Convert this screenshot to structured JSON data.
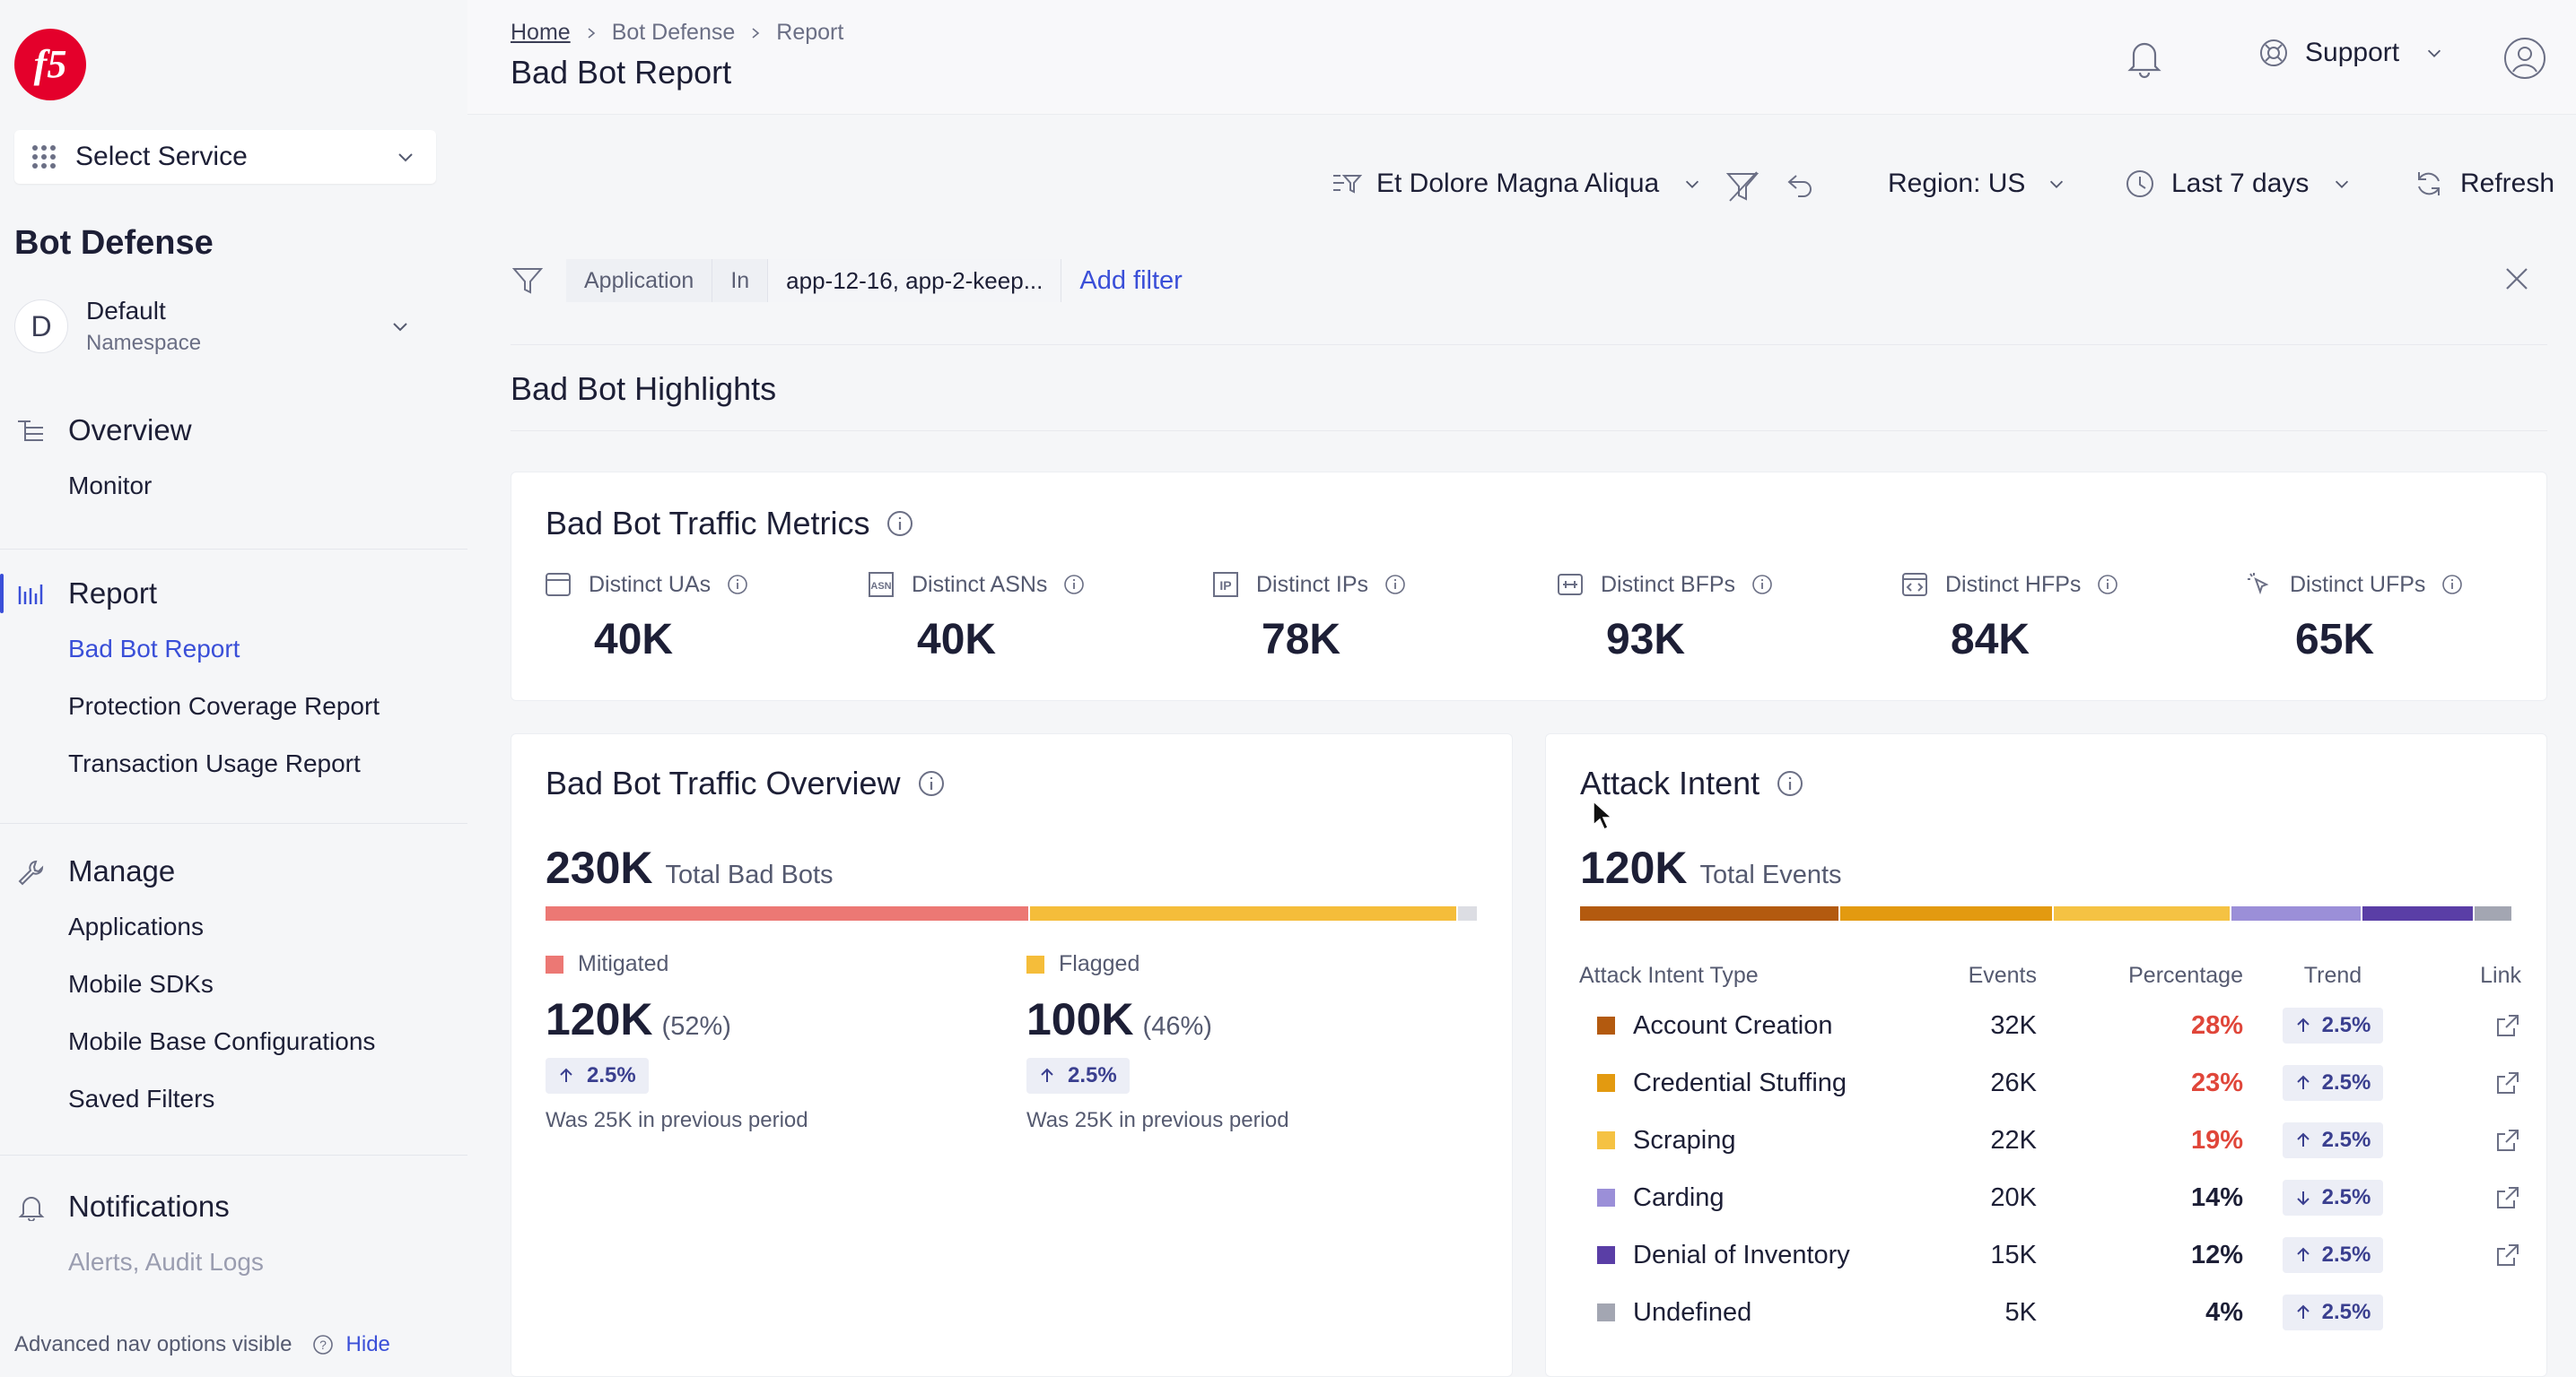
{
  "brand": {
    "logo_text": "f5",
    "accent": "#3a4fd8",
    "logo_color": "#e4002b"
  },
  "sidebar": {
    "select_service": "Select Service",
    "section_title": "Bot Defense",
    "namespace": {
      "avatar": "D",
      "name": "Default",
      "subtitle": "Namespace"
    },
    "groups": [
      {
        "label": "Overview",
        "icon": "overview-icon",
        "items": [
          "Monitor"
        ]
      },
      {
        "label": "Report",
        "icon": "report-icon",
        "items": [
          "Bad Bot Report",
          "Protection Coverage Report",
          "Transaction Usage Report"
        ]
      },
      {
        "label": "Manage",
        "icon": "wrench-icon",
        "items": [
          "Applications",
          "Mobile SDKs",
          "Mobile Base Configurations",
          "Saved Filters"
        ]
      },
      {
        "label": "Notifications",
        "icon": "bell-icon",
        "items": [
          "Alerts, Audit Logs"
        ]
      }
    ],
    "advanced_nav": {
      "text": "Advanced nav options visible",
      "hide": "Hide"
    }
  },
  "header": {
    "breadcrumb": [
      "Home",
      "Bot Defense",
      "Report"
    ],
    "title": "Bad Bot Report",
    "support": "Support"
  },
  "toolbar": {
    "app_selector": "Et Dolore Magna Aliqua",
    "region": "Region: US",
    "time_range": "Last 7 days",
    "refresh": "Refresh"
  },
  "filter": {
    "field": "Application",
    "operator": "In",
    "value": "app-12-16, app-2-keep...",
    "add": "Add filter"
  },
  "highlights_title": "Bad Bot Highlights",
  "metrics_card": {
    "title": "Bad Bot Traffic Metrics",
    "metrics": [
      {
        "label": "Distinct UAs",
        "value": "40K",
        "icon": "browser-window-icon"
      },
      {
        "label": "Distinct ASNs",
        "value": "40K",
        "icon": "asn-icon"
      },
      {
        "label": "Distinct IPs",
        "value": "78K",
        "icon": "ip-icon"
      },
      {
        "label": "Distinct BFPs",
        "value": "93K",
        "icon": "fingerprint-card-icon"
      },
      {
        "label": "Distinct HFPs",
        "value": "84K",
        "icon": "code-window-icon"
      },
      {
        "label": "Distinct UFPs",
        "value": "65K",
        "icon": "pointer-click-icon"
      }
    ]
  },
  "overview_card": {
    "title": "Bad Bot Traffic Overview",
    "total": "230K",
    "total_caption": "Total Bad Bots",
    "bar_segments": [
      {
        "name": "Mitigated",
        "fraction": 0.52,
        "color": "#ec7874"
      },
      {
        "name": "Flagged",
        "fraction": 0.46,
        "color": "#f5bd3a"
      },
      {
        "name": "Other",
        "fraction": 0.02,
        "color": "#dcdde3"
      }
    ],
    "legend": [
      {
        "label": "Mitigated",
        "value": "120K",
        "pct": "(52%)",
        "trend": "2.5%",
        "was": "Was 25K in previous period",
        "color": "#ec7874"
      },
      {
        "label": "Flagged",
        "value": "100K",
        "pct": "(46%)",
        "trend": "2.5%",
        "was": "Was 25K in previous period",
        "color": "#f5bd3a"
      }
    ]
  },
  "attack_card": {
    "title": "Attack Intent",
    "total": "120K",
    "total_caption": "Total Events",
    "columns": [
      "Attack Intent Type",
      "Events",
      "Percentage",
      "Trend",
      "Link"
    ],
    "rows": [
      {
        "type": "Account Creation",
        "events": "32K",
        "pct": "28%",
        "trend": "2.5%",
        "dir": "up",
        "color": "#b35a0f",
        "pct_color": "#e0463a",
        "link": true,
        "fraction": 0.28
      },
      {
        "type": "Credential Stuffing",
        "events": "26K",
        "pct": "23%",
        "trend": "2.5%",
        "dir": "up",
        "color": "#e39a10",
        "pct_color": "#e0463a",
        "link": true,
        "fraction": 0.23
      },
      {
        "type": "Scraping",
        "events": "22K",
        "pct": "19%",
        "trend": "2.5%",
        "dir": "up",
        "color": "#f5c243",
        "pct_color": "#e0463a",
        "link": true,
        "fraction": 0.19
      },
      {
        "type": "Carding",
        "events": "20K",
        "pct": "14%",
        "trend": "2.5%",
        "dir": "down",
        "color": "#9b8fd8",
        "pct_color": "#1d1f36",
        "link": true,
        "fraction": 0.14
      },
      {
        "type": "Denial of Inventory",
        "events": "15K",
        "pct": "12%",
        "trend": "2.5%",
        "dir": "up",
        "color": "#5a3ea6",
        "pct_color": "#1d1f36",
        "link": true,
        "fraction": 0.12
      },
      {
        "type": "Undefined",
        "events": "5K",
        "pct": "4%",
        "trend": "2.5%",
        "dir": "up",
        "color": "#a3a6b2",
        "pct_color": "#1d1f36",
        "link": false,
        "fraction": 0.04
      }
    ]
  }
}
